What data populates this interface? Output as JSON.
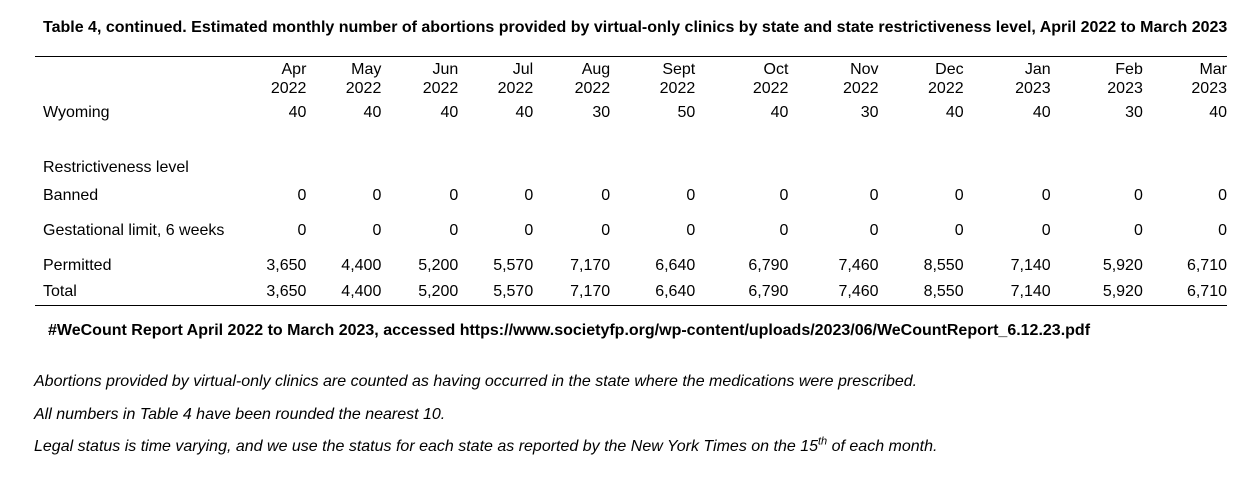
{
  "title": "Table 4, continued. Estimated monthly number of abortions provided by virtual-only clinics by state and state restrictiveness level, April 2022 to March 2023",
  "columns": [
    {
      "month": "Apr",
      "year": "2022"
    },
    {
      "month": "May",
      "year": "2022"
    },
    {
      "month": "Jun",
      "year": "2022"
    },
    {
      "month": "Jul",
      "year": "2022"
    },
    {
      "month": "Aug",
      "year": "2022"
    },
    {
      "month": "Sept",
      "year": "2022"
    },
    {
      "month": "Oct",
      "year": "2022"
    },
    {
      "month": "Nov",
      "year": "2022"
    },
    {
      "month": "Dec",
      "year": "2022"
    },
    {
      "month": "Jan",
      "year": "2023"
    },
    {
      "month": "Feb",
      "year": "2023"
    },
    {
      "month": "Mar",
      "year": "2023"
    }
  ],
  "rows": {
    "wyoming": {
      "label": "Wyoming",
      "values": [
        "40",
        "40",
        "40",
        "40",
        "30",
        "50",
        "40",
        "30",
        "40",
        "40",
        "30",
        "40"
      ]
    },
    "section_label": "Restrictiveness level",
    "banned": {
      "label": "Banned",
      "values": [
        "0",
        "0",
        "0",
        "0",
        "0",
        "0",
        "0",
        "0",
        "0",
        "0",
        "0",
        "0"
      ]
    },
    "gestational": {
      "label": "Gestational limit, 6 weeks",
      "values": [
        "0",
        "0",
        "0",
        "0",
        "0",
        "0",
        "0",
        "0",
        "0",
        "0",
        "0",
        "0"
      ]
    },
    "permitted": {
      "label": "Permitted",
      "values": [
        "3,650",
        "4,400",
        "5,200",
        "5,570",
        "7,170",
        "6,640",
        "6,790",
        "7,460",
        "8,550",
        "7,140",
        "5,920",
        "6,710"
      ]
    },
    "total": {
      "label": "Total",
      "values": [
        "3,650",
        "4,400",
        "5,200",
        "5,570",
        "7,170",
        "6,640",
        "6,790",
        "7,460",
        "8,550",
        "7,140",
        "5,920",
        "6,710"
      ]
    }
  },
  "source": "#WeCount Report April 2022 to March 2023, accessed https://www.societyfp.org/wp-content/uploads/2023/06/WeCountReport_6.12.23.pdf",
  "notes": {
    "note1": "Abortions provided by virtual-only clinics are counted as having occurred in the state where the medications were prescribed.",
    "note2": "All numbers in Table 4 have been rounded the nearest 10.",
    "note3_before": "Legal status is time varying, and we use the status for each state as reported by the New York Times on the 15",
    "note3_sup": "th",
    "note3_after": " of each month."
  }
}
